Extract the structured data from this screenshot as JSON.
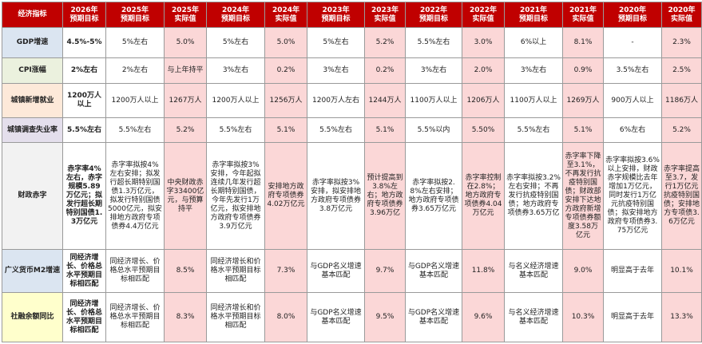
{
  "colors": {
    "header_bg": "#c00000",
    "header_text": "#ffffff",
    "actual_col_bg": "#fbd7d7",
    "grid_line": "#9a9a9a"
  },
  "headers": [
    "经济指标",
    "2026年\n预期目标",
    "2025年\n预期目标",
    "2025年\n实际值",
    "2024年\n预期目标",
    "2024年\n实际值",
    "2023年\n预期目标",
    "2023年\n实际值",
    "2022年\n预期目标",
    "2022年\n实际值",
    "2021年\n预期目标",
    "2021年\n实际值",
    "2020年\n预期目标",
    "2020年\n实际值"
  ],
  "rows": [
    {
      "label": "GDP增速",
      "label_bg": "#dbe5f1",
      "cells": [
        "4.5%-5%",
        "5%左右",
        "5.0%",
        "5%左右",
        "5.0%",
        "5%左右",
        "5.2%",
        "5.5%左右",
        "3.0%",
        "6%以上",
        "8.1%",
        "-",
        "2.3%"
      ]
    },
    {
      "label": "CPI涨幅",
      "label_bg": "#ebf1de",
      "cells": [
        "2%左右",
        "2%左右",
        "与上年持平",
        "3%左右",
        "0.2%",
        "3%左右",
        "0.2%",
        "3%左右",
        "2.0%",
        "3%左右",
        "0.9%",
        "3.5%左右",
        "2.5%"
      ]
    },
    {
      "label": "城镇新增就业",
      "label_bg": "#fde9d9",
      "cells": [
        "1200万人以上",
        "1200万人以上",
        "1267万人",
        "1200万人以上",
        "1256万人",
        "1200万人左右",
        "1244万人",
        "1100万人以上",
        "1206万人",
        "1100万人以上",
        "1269万人",
        "900万人以上",
        "1186万人"
      ]
    },
    {
      "label": "城镇调查失业率",
      "label_bg": "#e4dfec",
      "cells": [
        "5.5%左右",
        "5.5%左右",
        "5.2%",
        "5.5%左右",
        "5.1%",
        "5.5%左右",
        "5.1%",
        "5.5%以内",
        "5.50%",
        "5.5%左右",
        "5.1%",
        "6%左右",
        "5.2%"
      ]
    },
    {
      "label": "财政赤字",
      "label_bg": "#f2f2f2",
      "cells": [
        "赤字率4%左右，赤字规模5.89万亿元；拟发行超长期特别国债1.3万亿元",
        "赤字率拟按4%左右安排；拟发行超长期特别国债1.3万亿元，拟发行特别国债5000亿元，拟安排地方政府专项债券4.4万亿元",
        "中央财政赤字33400亿元，与预算持平",
        "赤字率拟按3%安排，今年起拟连续几年发行超长期特别国债，今年先发行1万亿元，拟安排地方政府专项债券3.9万亿元",
        "安排地方政府专项债券4.02万亿元",
        "赤字率拟按3%安排，拟安排地方政府专项债券3.8万亿元",
        "预计提高到3.8%左右；地方政府专项债券3.96万亿",
        "赤字率拟按2.8%左右安排；地方政府专项债券3.65万亿元",
        "赤字率控制在2.8%；地方政府专项债券4.04万亿元",
        "赤字率拟按3.2%左右安排；不再发行抗疫特别国债；地方政府专项债券3.65万亿",
        "赤字率下降至3.1%，不再发行抗疫特别国债；财政部安排下达地方政府新增专项债券额度3.58万亿元",
        "赤字率拟按3.6%以上安排，财政赤字规模比去年增加1万亿元，同时发行1万亿元抗疫特别国债；拟安排地方政府专项债券3.75万亿元",
        "赤字率提高至3.7，发行1万亿元抗疫特别国债；安排地方专项债3.6万亿元"
      ]
    },
    {
      "label": "广义货币M2增速",
      "label_bg": "#dbe5f1",
      "cells": [
        "同经济增长、价格总水平预期目标相匹配",
        "同经济增长、价格总水平预期目标相匹配",
        "8.5%",
        "同经济增长和价格水平预期目标相匹配",
        "7.3%",
        "与GDP名义增速基本匹配",
        "9.7%",
        "与GDP名义增速基本匹配",
        "11.8%",
        "与名义经济增速基本匹配",
        "9.0%",
        "明显高于去年",
        "10.1%"
      ]
    },
    {
      "label": "社融余额同比",
      "label_bg": "#ffffcc",
      "cells": [
        "同经济增长、价格总水平预期目标相匹配",
        "同经济增长、价格总水平预期目标相匹配",
        "8.3%",
        "同经济增长和价格水平预期目标相匹配",
        "8.0%",
        "与GDP名义增速基本匹配",
        "9.5%",
        "与GDP名义增速基本匹配",
        "9.6%",
        "与名义经济增速基本匹配",
        "10.3%",
        "明显高于去年",
        "13.3%"
      ]
    }
  ]
}
